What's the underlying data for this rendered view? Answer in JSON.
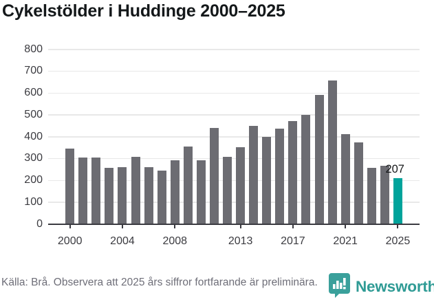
{
  "title": "Cykelstölder i Huddinge 2000–2025",
  "chart_data": {
    "type": "bar",
    "title": "Cykelstölder i Huddinge 2000–2025",
    "x": [
      2000,
      2001,
      2002,
      2003,
      2004,
      2005,
      2006,
      2007,
      2008,
      2009,
      2010,
      2011,
      2012,
      2013,
      2014,
      2015,
      2016,
      2017,
      2018,
      2019,
      2020,
      2021,
      2022,
      2023,
      2024,
      2025
    ],
    "values": [
      344,
      302,
      302,
      256,
      259,
      305,
      258,
      243,
      291,
      353,
      291,
      438,
      305,
      350,
      446,
      396,
      436,
      468,
      497,
      588,
      654,
      408,
      373,
      256,
      266,
      207
    ],
    "xlabel": "",
    "ylabel": "",
    "ylim": [
      0,
      800
    ],
    "yticks": [
      0,
      100,
      200,
      300,
      400,
      500,
      600,
      700,
      800
    ],
    "xtick_years": [
      2000,
      2004,
      2008,
      2013,
      2017,
      2021,
      2025
    ],
    "grid": true,
    "legend_position": "none",
    "bar_color": "#6c6c72",
    "highlight_color": "#00a39b",
    "highlight_index": 25,
    "highlight_label": "207"
  },
  "footer": {
    "source_note": "Källa: Brå. Observera att 2025 års siffror fortfarande är preliminära.",
    "logo_text": "Newsworthy",
    "logo_icon": "bar-chart-speech-bubble-icon",
    "logo_color": "#2f9b95"
  },
  "colors": {
    "bar_gray": "#6c6c72",
    "bar_teal": "#00a39b",
    "axis": "#3a3a40",
    "gridline": "#e8e8e8",
    "tick_label": "#3b3b40",
    "title_text": "#14181a",
    "footer_text": "#6e6e78"
  }
}
